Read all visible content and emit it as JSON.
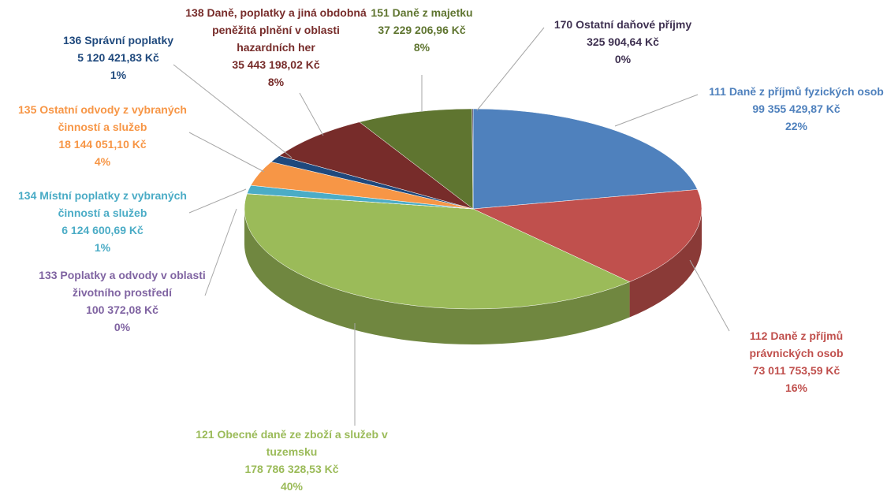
{
  "chart_data": {
    "type": "pie",
    "categories": [
      "111 Daně z příjmů fyzických osob",
      "112 Daně z příjmů právnických osob",
      "121 Obecné daně ze zboží a služeb v tuzemsku",
      "133 Poplatky a odvody v oblasti  životního prostředí",
      "134 Místní poplatky z vybraných činností a služeb",
      "135 Ostatní odvody z vybraných činností a služeb",
      "136 Správní poplatky",
      "138 Daně, poplatky a jiná obdobná peněžitá plnění v oblasti hazardních her",
      "151 Daně z majetku",
      "170 Ostatní daňové příjmy"
    ],
    "values": [
      99355429.87,
      73011753.59,
      178786328.53,
      100372.08,
      6124600.69,
      18144051.1,
      5120421.83,
      35443198.02,
      37229206.96,
      325904.64
    ],
    "value_labels": [
      "99 355 429,87 Kč",
      "73 011 753,59 Kč",
      "178 786 328,53 Kč",
      "100 372,08 Kč",
      "6 124 600,69 Kč",
      "18 144 051,10 Kč",
      "5 120 421,83 Kč",
      "35 443 198,02 Kč",
      "37 229 206,96 Kč",
      "325 904,64 Kč"
    ],
    "percents": [
      22,
      16,
      40,
      0,
      1,
      4,
      1,
      8,
      8,
      0
    ],
    "percent_labels": [
      "22%",
      "16%",
      "40%",
      "0%",
      "1%",
      "4%",
      "1%",
      "8%",
      "8%",
      "0%"
    ],
    "colors": [
      "#4f81bd",
      "#c0504d",
      "#9bbb59",
      "#8064a2",
      "#4bacc6",
      "#f79646",
      "#1f497d",
      "#772c2a",
      "#5f7530",
      "#3f3151"
    ]
  }
}
